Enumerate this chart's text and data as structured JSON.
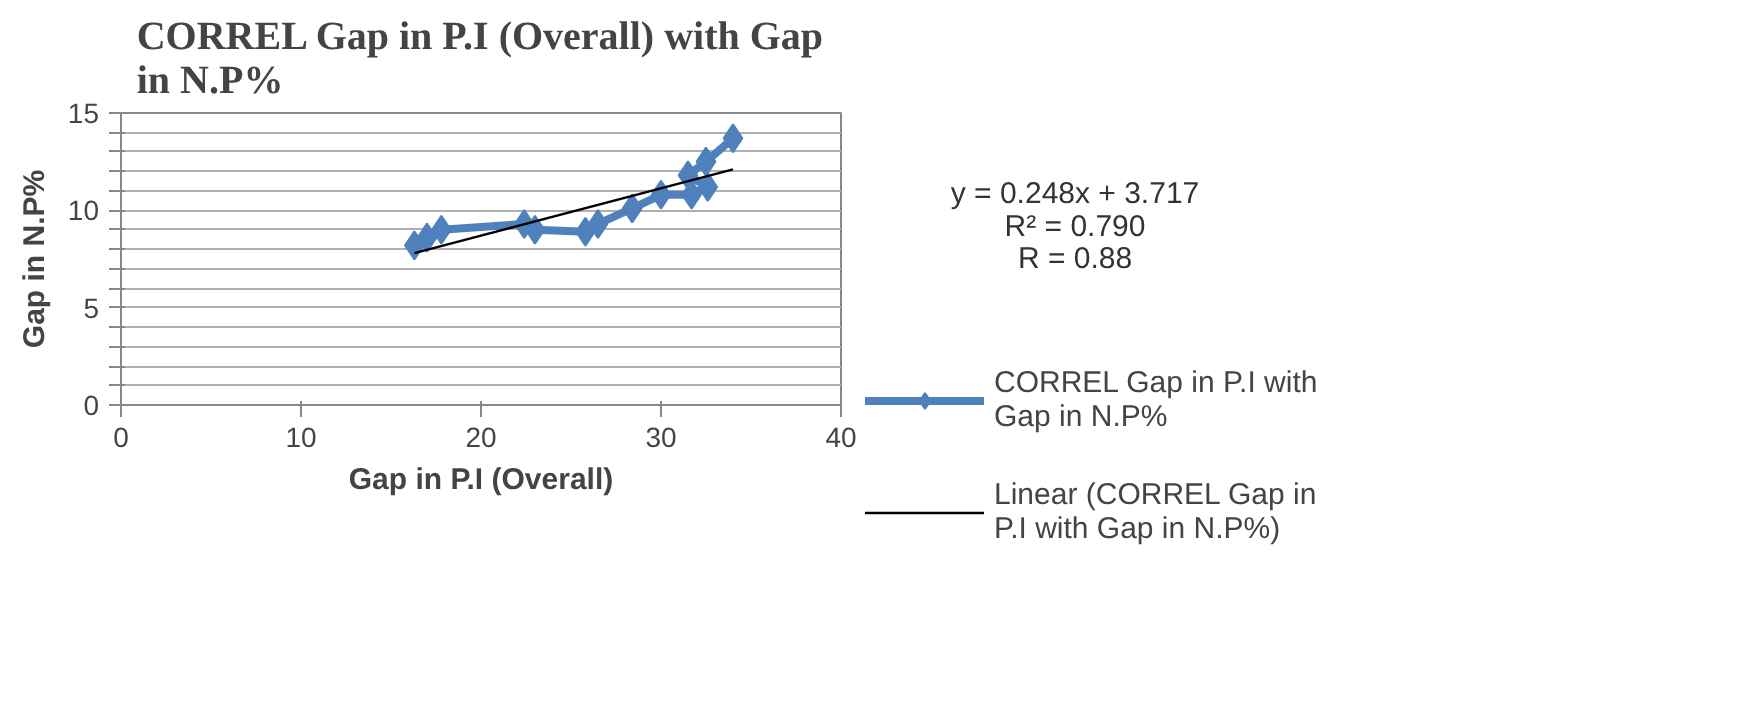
{
  "chart_data": {
    "type": "line",
    "title": "CORREL Gap in P.I (Overall) with Gap in N.P%",
    "xlabel": "Gap in P.I (Overall)",
    "ylabel": "Gap in N.P%",
    "xlim": [
      0,
      40
    ],
    "xticks": [
      0,
      10,
      20,
      30,
      40
    ],
    "ylim": [
      0,
      15
    ],
    "yticks": [
      0,
      {
        "value": 1,
        "label": null
      },
      {
        "value": 2,
        "label": null
      },
      {
        "value": 3,
        "label": null
      },
      {
        "value": 4,
        "label": null
      },
      5,
      {
        "value": 6,
        "label": null
      },
      {
        "value": 7,
        "label": null
      },
      {
        "value": 8,
        "label": null
      },
      {
        "value": 9,
        "label": null
      },
      10,
      {
        "value": 11,
        "label": null
      },
      {
        "value": 12,
        "label": null
      },
      {
        "value": 13,
        "label": null
      },
      {
        "value": 14,
        "label": null
      },
      15
    ],
    "grid": "y",
    "legend": "right",
    "marker": "diamond",
    "annotations": [
      "y = 0.248x + 3.717",
      "R² = 0.790",
      "R = 0.88"
    ],
    "series": [
      {
        "name": "CORREL Gap in P.I with Gap in N.P%",
        "color": "#4f81bd",
        "x": [
          16.3,
          17.0,
          17.8,
          22.4,
          23.0,
          25.8,
          26.5,
          28.4,
          30.0,
          31.7,
          32.6,
          31.5,
          32.5,
          34.0
        ],
        "values": [
          8.2,
          8.6,
          9.0,
          9.3,
          9.0,
          8.9,
          9.3,
          10.1,
          10.8,
          10.8,
          11.2,
          11.8,
          12.5,
          13.7
        ]
      },
      {
        "name": "Linear (CORREL Gap in P.I with Gap in N.P%)",
        "type": "line",
        "marker": "none",
        "color": "#000000",
        "x": [
          16.3,
          34.0
        ],
        "values": [
          7.8,
          12.1
        ]
      }
    ]
  }
}
